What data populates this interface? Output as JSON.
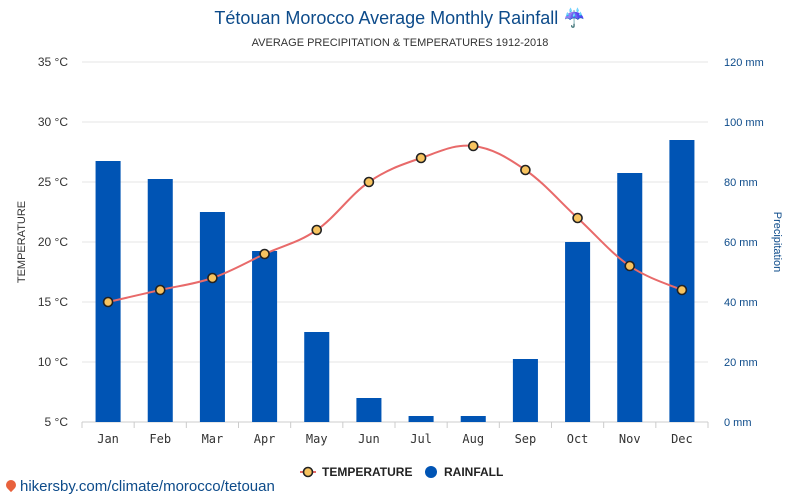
{
  "header": {
    "title": "Tétouan Morocco Average Monthly Rainfall ☔",
    "subtitle": "AVERAGE PRECIPITATION & TEMPERATURES 1912-2018"
  },
  "legend": {
    "temperature_label": "TEMPERATURE",
    "rainfall_label": "RAINFALL"
  },
  "footer": {
    "source_link": "hikersby.com/climate/morocco/tetouan"
  },
  "colors": {
    "bar": "#0054b4",
    "line": "#e86a6a",
    "marker_fill": "#f7c35f",
    "marker_stroke": "#222222",
    "grid": "#e6e6e6"
  },
  "chart_data": {
    "type": "bar",
    "categories": [
      "Jan",
      "Feb",
      "Mar",
      "Apr",
      "May",
      "Jun",
      "Jul",
      "Aug",
      "Sep",
      "Oct",
      "Nov",
      "Dec"
    ],
    "series": [
      {
        "name": "TEMPERATURE",
        "type": "line",
        "axis": "left",
        "values": [
          15,
          16,
          17,
          19,
          21,
          25,
          27,
          28,
          26,
          22,
          18,
          16
        ]
      },
      {
        "name": "RAINFALL",
        "type": "bar",
        "axis": "right",
        "values": [
          87,
          81,
          70,
          57,
          30,
          8,
          2,
          2,
          21,
          60,
          83,
          94
        ]
      }
    ],
    "ylabel": "TEMPERATURE",
    "y2label": "Precipitation",
    "ylim": [
      5,
      35
    ],
    "y2lim": [
      0,
      120
    ],
    "yticks": [
      "35 °C",
      "30 °C",
      "25 °C",
      "20 °C",
      "15 °C",
      "10 °C",
      "5 °C"
    ],
    "y2ticks": [
      "120 mm",
      "100 mm",
      "80 mm",
      "60 mm",
      "40 mm",
      "20 mm",
      "0 mm"
    ],
    "grid": true,
    "legend_position": "bottom-center"
  }
}
